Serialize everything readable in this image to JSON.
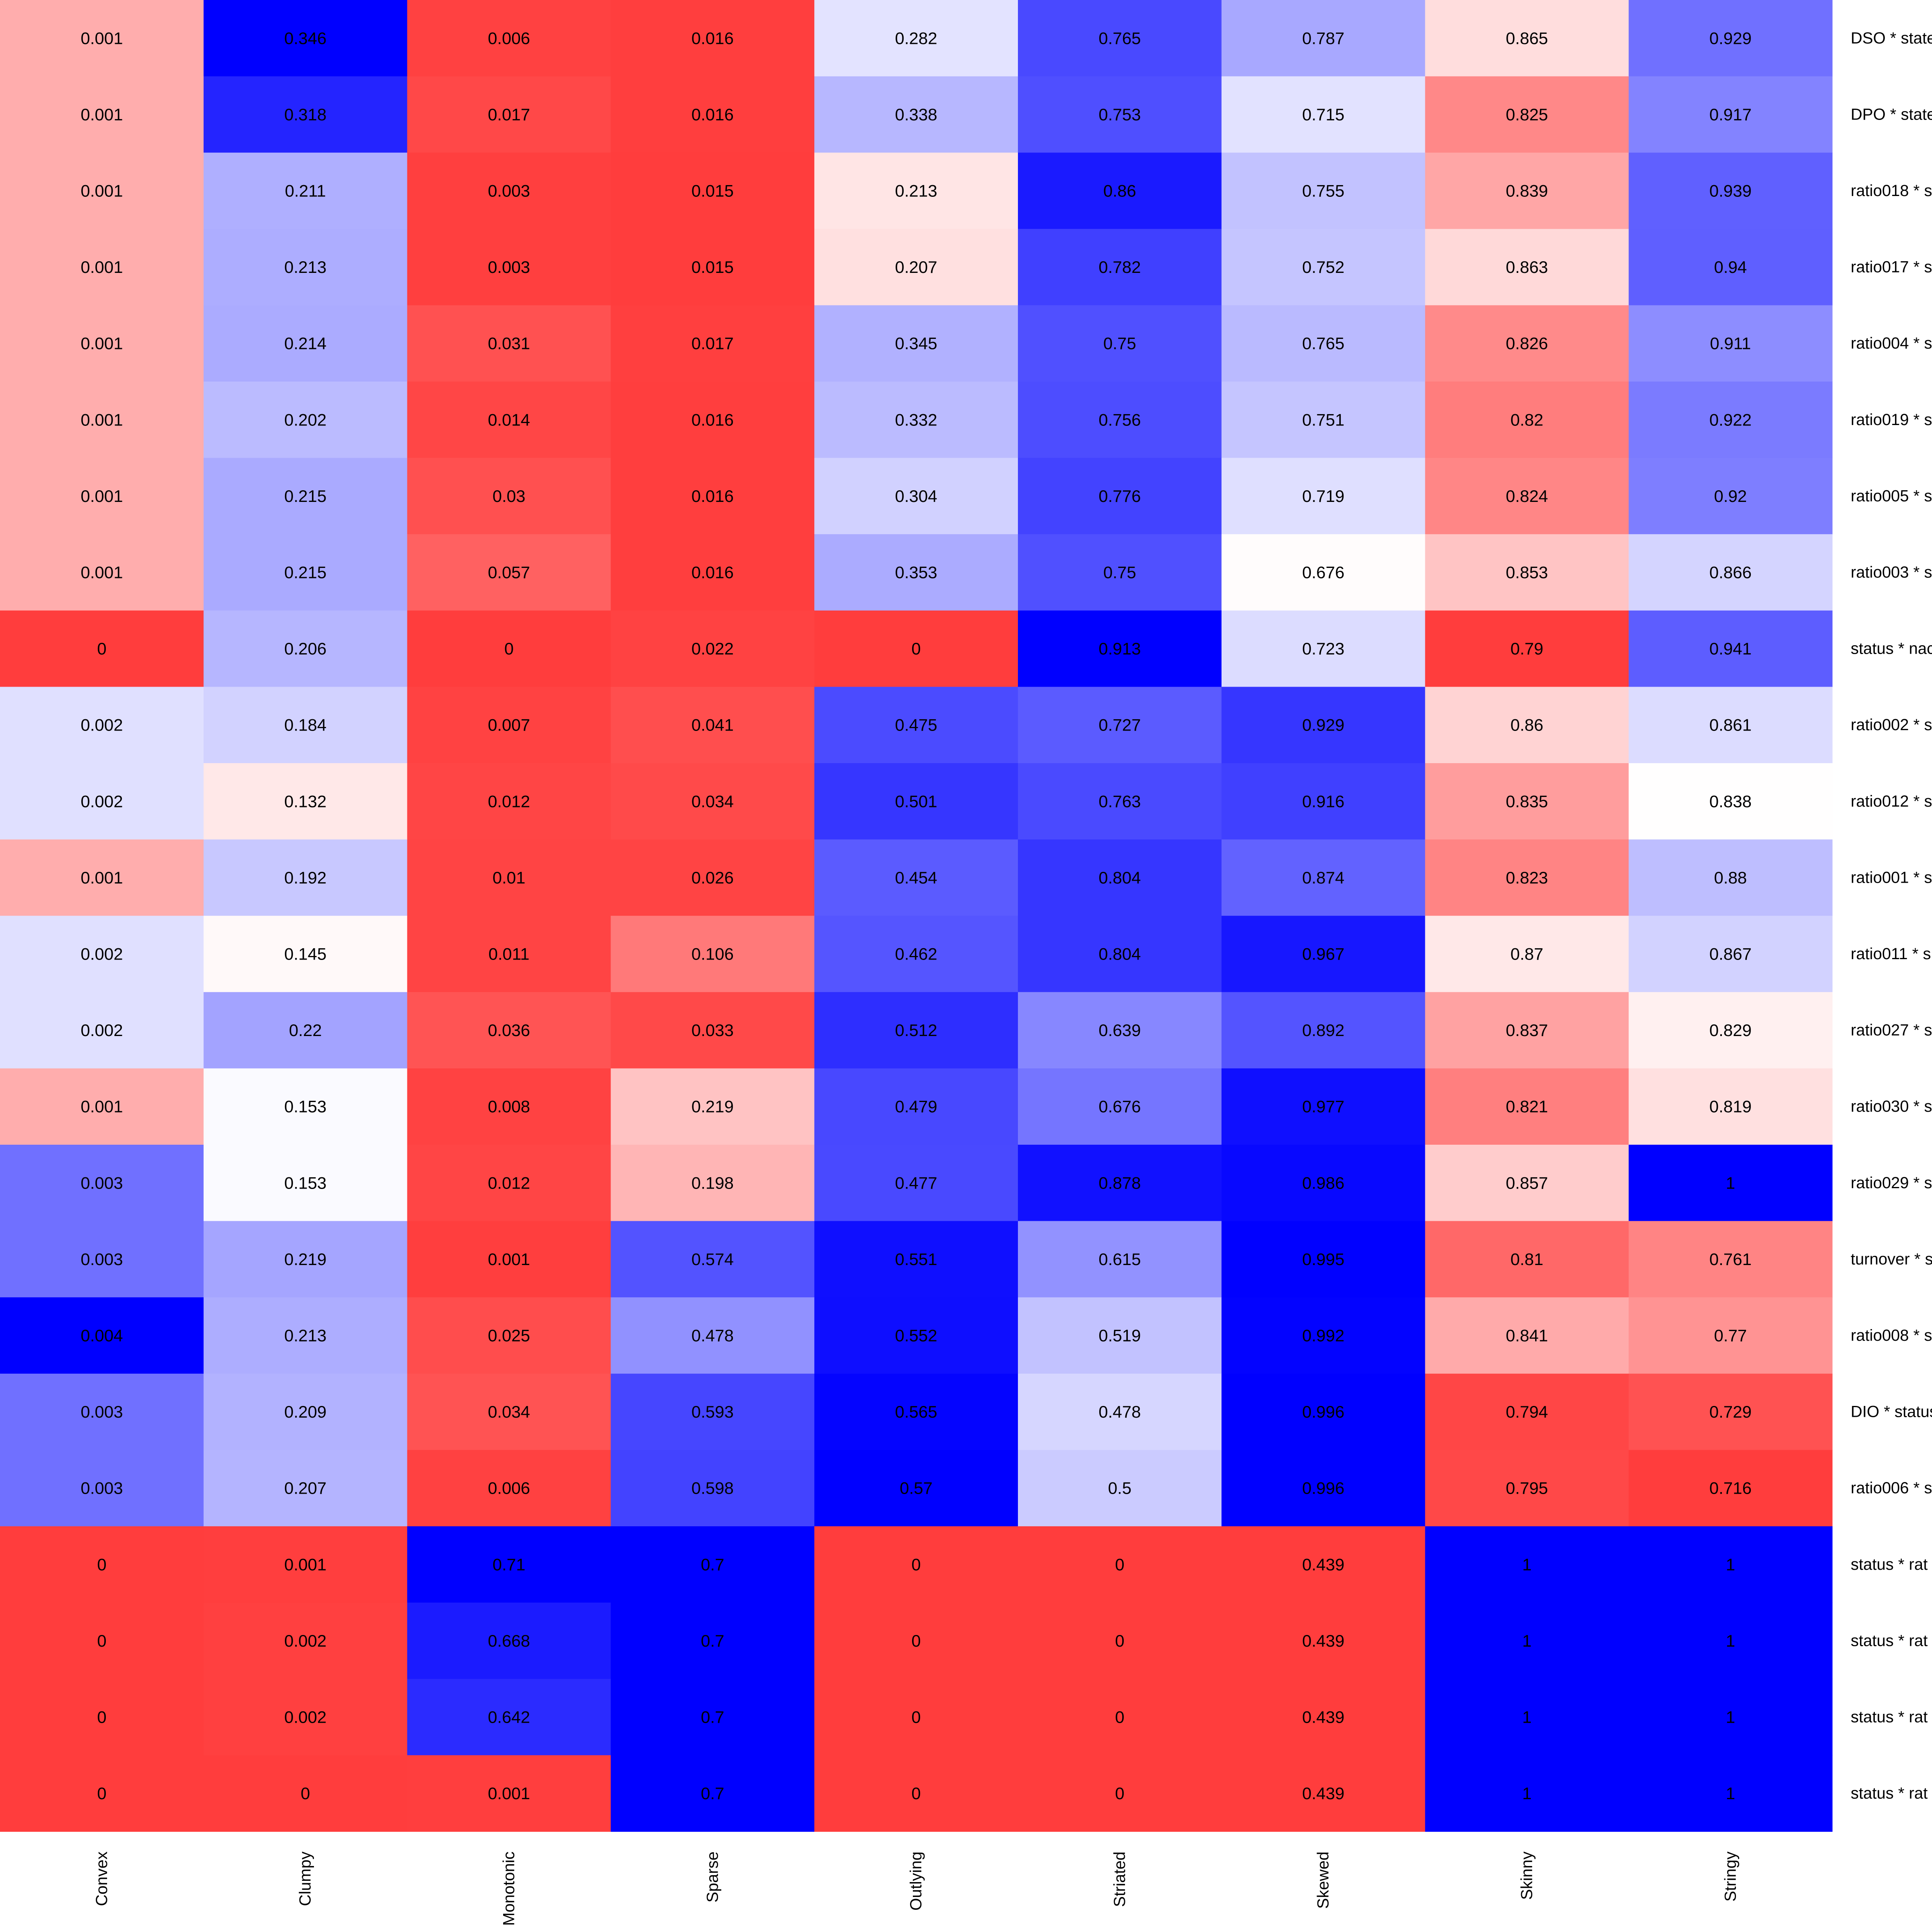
{
  "chart_data": {
    "type": "heatmap",
    "title": "",
    "xlabel": "",
    "ylabel": "",
    "columns": [
      "Convex",
      "Clumpy",
      "Monotonic",
      "Sparse",
      "Outlying",
      "Striated",
      "Skewed",
      "Skinny",
      "Stringy"
    ],
    "rows": [
      "DSO * state",
      "DPO * state",
      "ratio018 * s",
      "ratio017 * s",
      "ratio004 * s",
      "ratio019 * s",
      "ratio005 * s",
      "ratio003 * s",
      "status * nac",
      "ratio002 * s",
      "ratio012 * s",
      "ratio001 * s",
      "ratio011 * s",
      "ratio027 * s",
      "ratio030 * s",
      "ratio029 * s",
      "turnover * s",
      "ratio008 * s",
      "DIO * status",
      "ratio006 * s",
      "status * rat",
      "status * rat",
      "status * rat",
      "status * rat"
    ],
    "values": [
      [
        0.001,
        0.346,
        0.006,
        0.016,
        0.282,
        0.765,
        0.787,
        0.865,
        0.929
      ],
      [
        0.001,
        0.318,
        0.017,
        0.016,
        0.338,
        0.753,
        0.715,
        0.825,
        0.917
      ],
      [
        0.001,
        0.211,
        0.003,
        0.015,
        0.213,
        0.86,
        0.755,
        0.839,
        0.939
      ],
      [
        0.001,
        0.213,
        0.003,
        0.015,
        0.207,
        0.782,
        0.752,
        0.863,
        0.94
      ],
      [
        0.001,
        0.214,
        0.031,
        0.017,
        0.345,
        0.75,
        0.765,
        0.826,
        0.911
      ],
      [
        0.001,
        0.202,
        0.014,
        0.016,
        0.332,
        0.756,
        0.751,
        0.82,
        0.922
      ],
      [
        0.001,
        0.215,
        0.03,
        0.016,
        0.304,
        0.776,
        0.719,
        0.824,
        0.92
      ],
      [
        0.001,
        0.215,
        0.057,
        0.016,
        0.353,
        0.75,
        0.676,
        0.853,
        0.866
      ],
      [
        0,
        0.206,
        0,
        0.022,
        0,
        0.913,
        0.723,
        0.79,
        0.941
      ],
      [
        0.002,
        0.184,
        0.007,
        0.041,
        0.475,
        0.727,
        0.929,
        0.86,
        0.861
      ],
      [
        0.002,
        0.132,
        0.012,
        0.034,
        0.501,
        0.763,
        0.916,
        0.835,
        0.838
      ],
      [
        0.001,
        0.192,
        0.01,
        0.026,
        0.454,
        0.804,
        0.874,
        0.823,
        0.88
      ],
      [
        0.002,
        0.145,
        0.011,
        0.106,
        0.462,
        0.804,
        0.967,
        0.87,
        0.867
      ],
      [
        0.002,
        0.22,
        0.036,
        0.033,
        0.512,
        0.639,
        0.892,
        0.837,
        0.829
      ],
      [
        0.001,
        0.153,
        0.008,
        0.219,
        0.479,
        0.676,
        0.977,
        0.821,
        0.819
      ],
      [
        0.003,
        0.153,
        0.012,
        0.198,
        0.477,
        0.878,
        0.986,
        0.857,
        1
      ],
      [
        0.003,
        0.219,
        0.001,
        0.574,
        0.551,
        0.615,
        0.995,
        0.81,
        0.761
      ],
      [
        0.004,
        0.213,
        0.025,
        0.478,
        0.552,
        0.519,
        0.992,
        0.841,
        0.77
      ],
      [
        0.003,
        0.209,
        0.034,
        0.593,
        0.565,
        0.478,
        0.996,
        0.794,
        0.729
      ],
      [
        0.003,
        0.207,
        0.006,
        0.598,
        0.57,
        0.5,
        0.996,
        0.795,
        0.716
      ],
      [
        0,
        0.001,
        0.71,
        0.7,
        0,
        0,
        0.439,
        1,
        1
      ],
      [
        0,
        0.002,
        0.668,
        0.7,
        0,
        0,
        0.439,
        1,
        1
      ],
      [
        0,
        0.002,
        0.642,
        0.7,
        0,
        0,
        0.439,
        1,
        1
      ],
      [
        0,
        0,
        0.001,
        0.7,
        0,
        0,
        0.439,
        1,
        1
      ]
    ],
    "colormap": "bwr (per-column scaling)",
    "colors": {
      "low": "#ff0000",
      "mid": "#ffffff",
      "high": "#0000ff"
    },
    "grid": false,
    "legend": "none"
  }
}
